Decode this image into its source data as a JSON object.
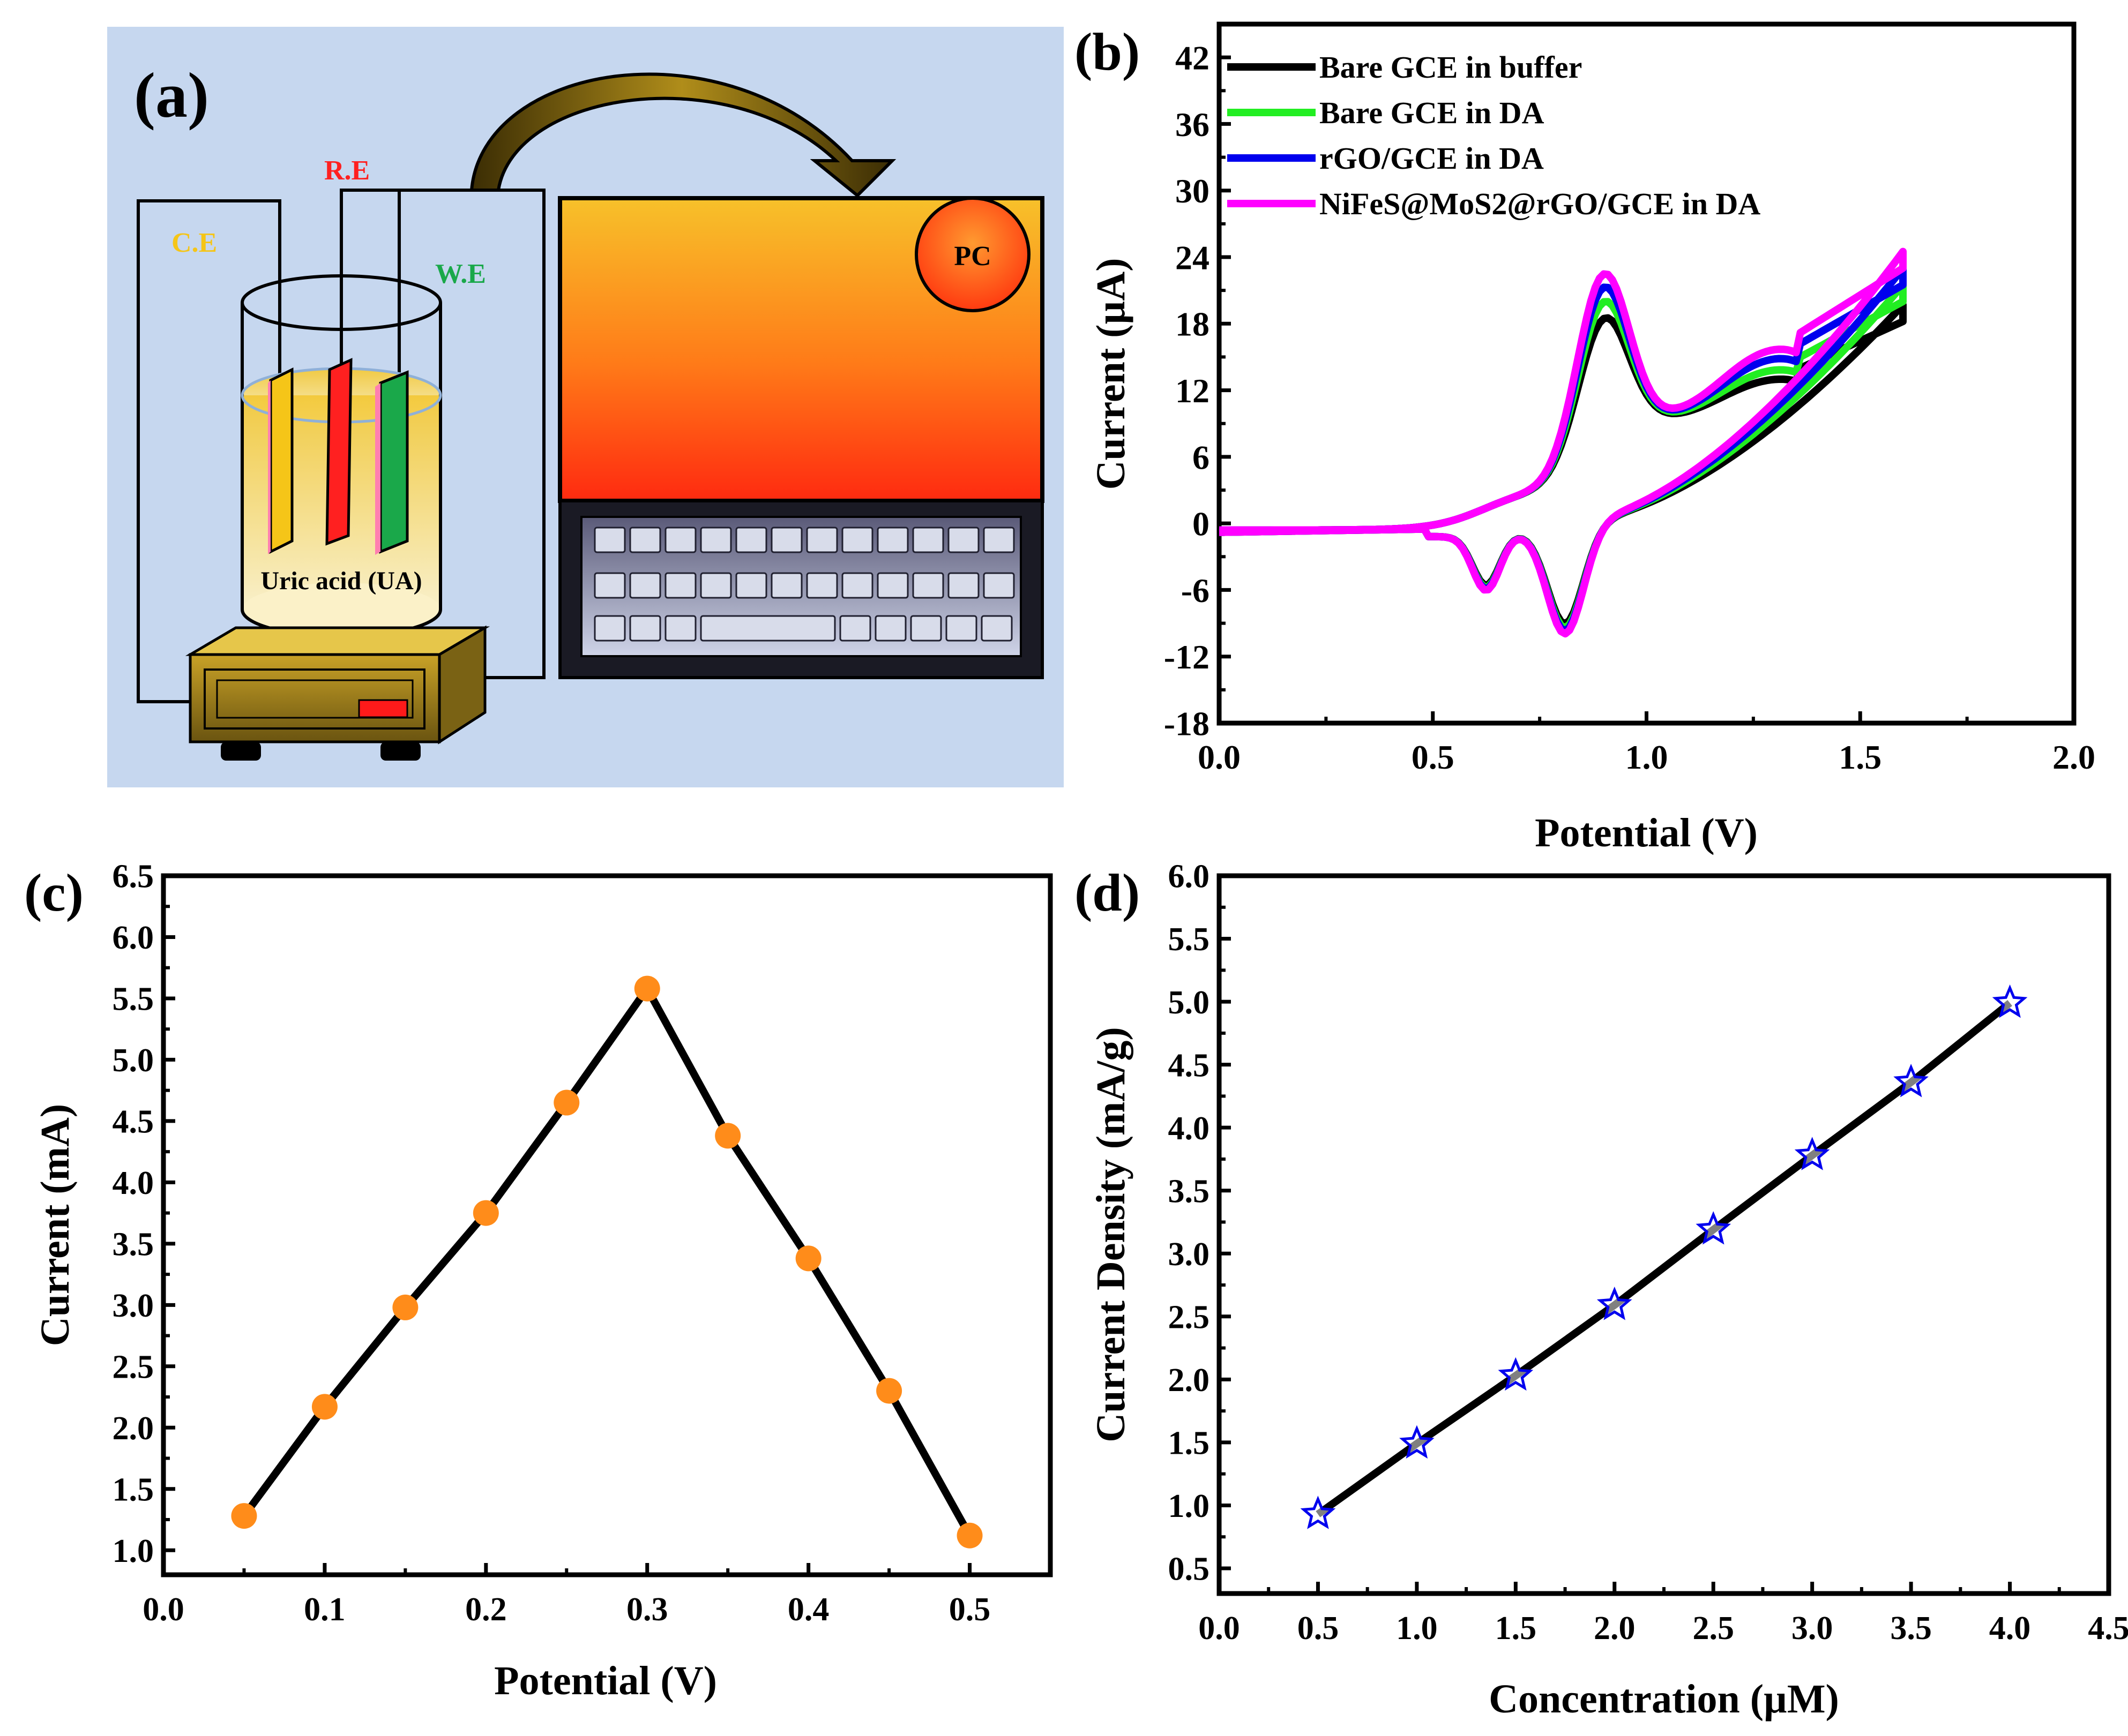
{
  "schematic": {
    "label": "(a)",
    "ce": "C.E",
    "re": "R.E",
    "we": "W.E",
    "pc": "PC",
    "solution": "Uric acid (UA)",
    "colors": {
      "background": "#c6d7ef",
      "ce": "#f5c518",
      "re": "#ff2020",
      "we": "#1aa84a"
    }
  },
  "chart_data": [
    {
      "id": "b",
      "panel_label": "(b)",
      "type": "line",
      "xlabel": "Potential (V)",
      "ylabel": "Current (µA)",
      "xlim": [
        0,
        2.0
      ],
      "ylim": [
        -18,
        45
      ],
      "xticks": [
        0,
        0.5,
        1.0,
        1.5,
        2.0
      ],
      "xtick_labels": [
        "0.0",
        "0.5",
        "1.0",
        "1.5",
        "2.0"
      ],
      "yticks": [
        -18,
        -12,
        -6,
        0,
        6,
        12,
        18,
        24,
        30,
        36,
        42
      ],
      "ytick_labels": [
        "-18",
        "-12",
        "-6",
        "0",
        "6",
        "12",
        "18",
        "24",
        "30",
        "36",
        "42"
      ],
      "legend_position": "top-left",
      "series": [
        {
          "name": "Bare GCE in buffer",
          "color": "#000000",
          "anodic_peak": 16.8,
          "plateau": 14.0,
          "cathodic_peak": -10.0,
          "end_current": 18.2
        },
        {
          "name": "Bare GCE in DA",
          "color": "#22ee22",
          "anodic_peak": 18.3,
          "plateau": 15.0,
          "cathodic_peak": -10.4,
          "end_current": 20.0
        },
        {
          "name": "rGO/GCE in DA",
          "color": "#0000ee",
          "anodic_peak": 19.6,
          "plateau": 16.2,
          "cathodic_peak": -10.7,
          "end_current": 21.5
        },
        {
          "name": "NiFeS@MoS2@rGO/GCE in DA",
          "color": "#ff00ff",
          "anodic_peak": 20.8,
          "plateau": 17.2,
          "cathodic_peak": -11.0,
          "end_current": 23.0
        }
      ]
    },
    {
      "id": "c",
      "panel_label": "(c)",
      "type": "line",
      "xlabel": "Potential (V)",
      "ylabel": "Current (mA)",
      "xlim": [
        0,
        0.55
      ],
      "ylim": [
        0.8,
        6.5
      ],
      "xticks": [
        0,
        0.1,
        0.2,
        0.3,
        0.4,
        0.5
      ],
      "xtick_labels": [
        "0.0",
        "0.1",
        "0.2",
        "0.3",
        "0.4",
        "0.5"
      ],
      "yticks": [
        1.0,
        1.5,
        2.0,
        2.5,
        3.0,
        3.5,
        4.0,
        4.5,
        5.0,
        5.5,
        6.0,
        6.5
      ],
      "ytick_labels": [
        "1.0",
        "1.5",
        "2.0",
        "2.5",
        "3.0",
        "3.5",
        "4.0",
        "4.5",
        "5.0",
        "5.5",
        "6.0",
        "6.5"
      ],
      "series": [
        {
          "color": "#000000",
          "marker_color": "#ff8c1a",
          "x": [
            0.05,
            0.1,
            0.15,
            0.2,
            0.25,
            0.3,
            0.35,
            0.4,
            0.45,
            0.5
          ],
          "values": [
            1.28,
            2.17,
            2.98,
            3.75,
            4.65,
            5.58,
            4.38,
            3.38,
            2.3,
            1.12
          ]
        }
      ]
    },
    {
      "id": "d",
      "panel_label": "(d)",
      "type": "line",
      "xlabel": "Concentration (µM)",
      "ylabel": "Current Density (mA/g)",
      "xlim": [
        0,
        4.5
      ],
      "ylim": [
        0.3,
        6.0
      ],
      "xticks": [
        0,
        0.5,
        1.0,
        1.5,
        2.0,
        2.5,
        3.0,
        3.5,
        4.0,
        4.5
      ],
      "xtick_labels": [
        "0.0",
        "0.5",
        "1.0",
        "1.5",
        "2.0",
        "2.5",
        "3.0",
        "3.5",
        "4.0",
        "4.5"
      ],
      "yticks": [
        0.5,
        1.0,
        1.5,
        2.0,
        2.5,
        3.0,
        3.5,
        4.0,
        4.5,
        5.0,
        5.5,
        6.0
      ],
      "ytick_labels": [
        "0.5",
        "1.0",
        "1.5",
        "2.0",
        "2.5",
        "3.0",
        "3.5",
        "4.0",
        "4.5",
        "5.0",
        "5.5",
        "6.0"
      ],
      "series": [
        {
          "color": "#000000",
          "marker_color": "#0000ee",
          "x": [
            0.5,
            1.0,
            1.5,
            2.0,
            2.5,
            3.0,
            3.5,
            4.0
          ],
          "values": [
            0.93,
            1.49,
            2.03,
            2.59,
            3.19,
            3.78,
            4.36,
            4.99
          ]
        }
      ]
    }
  ]
}
